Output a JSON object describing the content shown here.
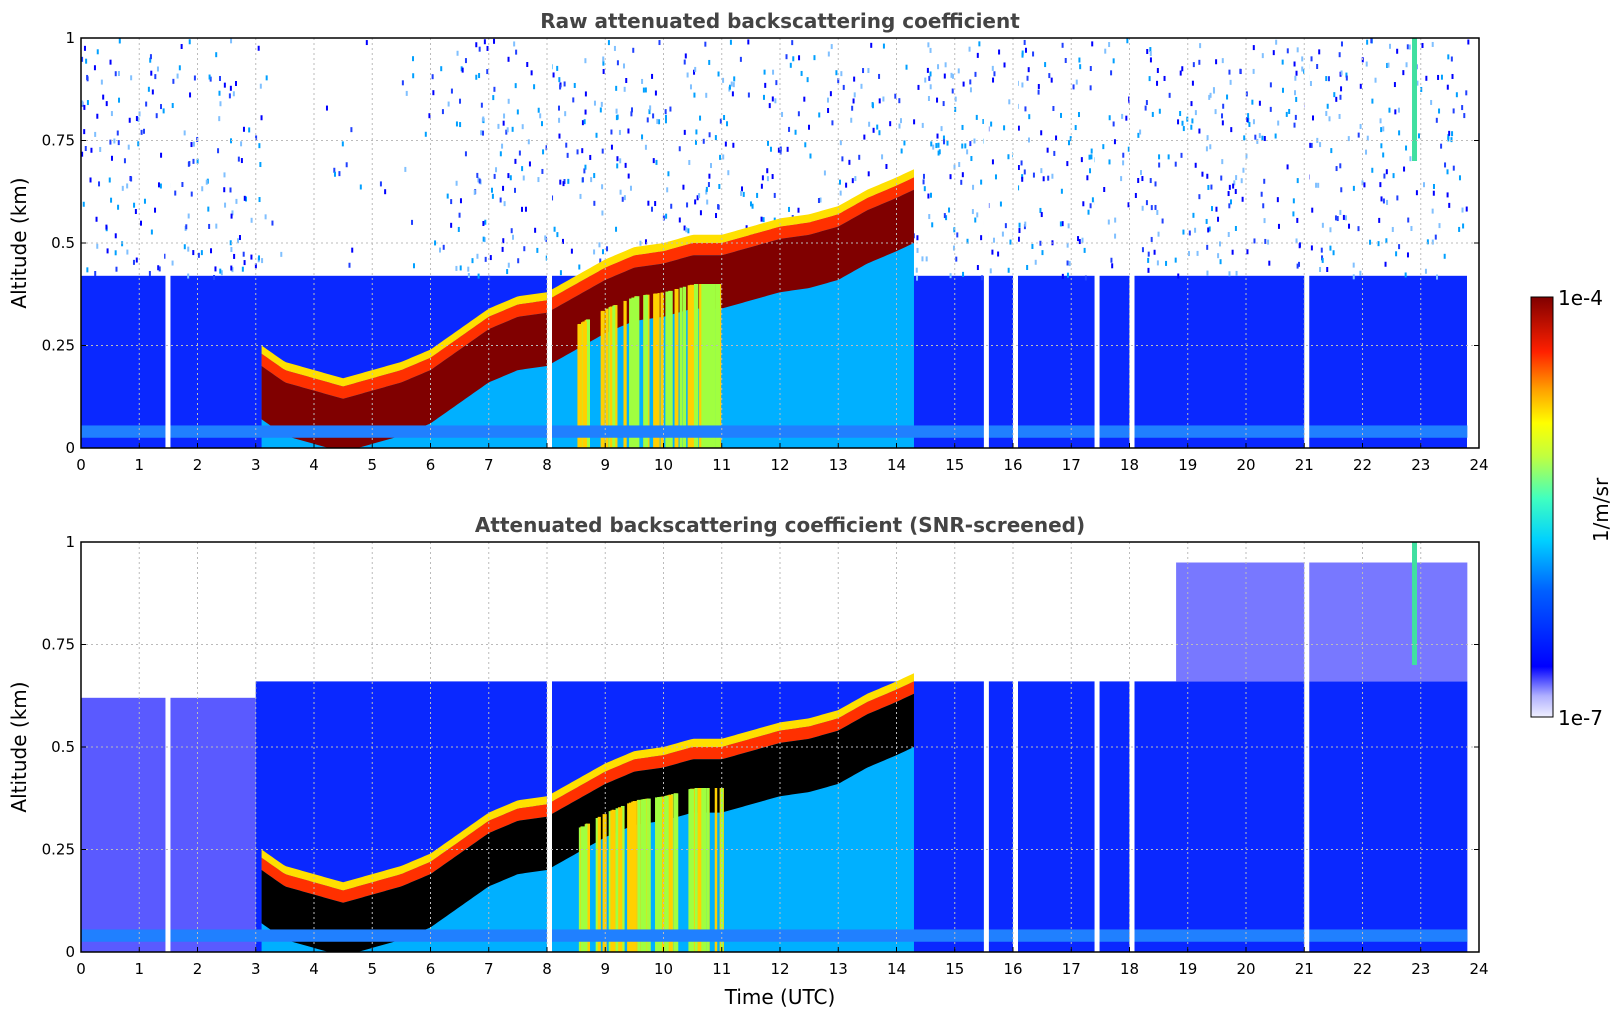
{
  "chart_data": [
    {
      "type": "heatmap",
      "title": "Raw attenuated backscattering coefficient",
      "xlabel": "",
      "ylabel": "Altitude (km)",
      "xlim": [
        0,
        24
      ],
      "ylim": [
        0,
        1
      ],
      "xticks": [
        "0",
        "1",
        "2",
        "3",
        "4",
        "5",
        "6",
        "7",
        "8",
        "9",
        "10",
        "11",
        "12",
        "13",
        "14",
        "15",
        "16",
        "17",
        "18",
        "19",
        "20",
        "21",
        "22",
        "23",
        "24"
      ],
      "yticks": [
        "0",
        "0.25",
        "0.5",
        "0.75",
        "1"
      ],
      "grid": true,
      "screened": false,
      "layer_top_km": {
        "times": [
          3.1,
          3.5,
          4.0,
          4.5,
          5.0,
          5.5,
          6.0,
          6.5,
          7.0,
          7.5,
          8.0,
          8.5,
          9.0,
          9.5,
          10.0,
          10.5,
          11.0,
          11.5,
          12.0,
          12.5,
          13.0,
          13.5,
          14.0,
          14.3
        ],
        "values": [
          0.23,
          0.19,
          0.17,
          0.15,
          0.17,
          0.19,
          0.22,
          0.27,
          0.32,
          0.35,
          0.36,
          0.4,
          0.44,
          0.47,
          0.48,
          0.5,
          0.5,
          0.52,
          0.54,
          0.55,
          0.57,
          0.61,
          0.64,
          0.66
        ]
      }
    },
    {
      "type": "heatmap",
      "title": "Attenuated backscattering coefficient (SNR-screened)",
      "xlabel": "Time (UTC)",
      "ylabel": "Altitude (km)",
      "xlim": [
        0,
        24
      ],
      "ylim": [
        0,
        1
      ],
      "xticks": [
        "0",
        "1",
        "2",
        "3",
        "4",
        "5",
        "6",
        "7",
        "8",
        "9",
        "10",
        "11",
        "12",
        "13",
        "14",
        "15",
        "16",
        "17",
        "18",
        "19",
        "20",
        "21",
        "22",
        "23",
        "24"
      ],
      "yticks": [
        "0",
        "0.25",
        "0.5",
        "0.75",
        "1"
      ],
      "grid": true,
      "screened": true,
      "layer_top_km": {
        "times": [
          3.1,
          3.5,
          4.0,
          4.5,
          5.0,
          5.5,
          6.0,
          6.5,
          7.0,
          7.5,
          8.0,
          8.5,
          9.0,
          9.5,
          10.0,
          10.5,
          11.0,
          11.5,
          12.0,
          12.5,
          13.0,
          13.5,
          14.0,
          14.3
        ],
        "values": [
          0.23,
          0.19,
          0.17,
          0.15,
          0.17,
          0.19,
          0.22,
          0.27,
          0.32,
          0.35,
          0.36,
          0.4,
          0.44,
          0.47,
          0.48,
          0.5,
          0.5,
          0.52,
          0.54,
          0.55,
          0.57,
          0.61,
          0.64,
          0.66
        ]
      }
    }
  ],
  "colorbar": {
    "label": "1/m/sr",
    "max_label": "1e-4",
    "min_label": "1e-7",
    "scale": "log",
    "colormap": "jet",
    "range": [
      1e-07,
      0.0001
    ]
  },
  "colors": {
    "background_signal": "#0000ff",
    "layer_core_raw": "#800000",
    "layer_core_screened": "#000000",
    "title_text": "#444444"
  }
}
